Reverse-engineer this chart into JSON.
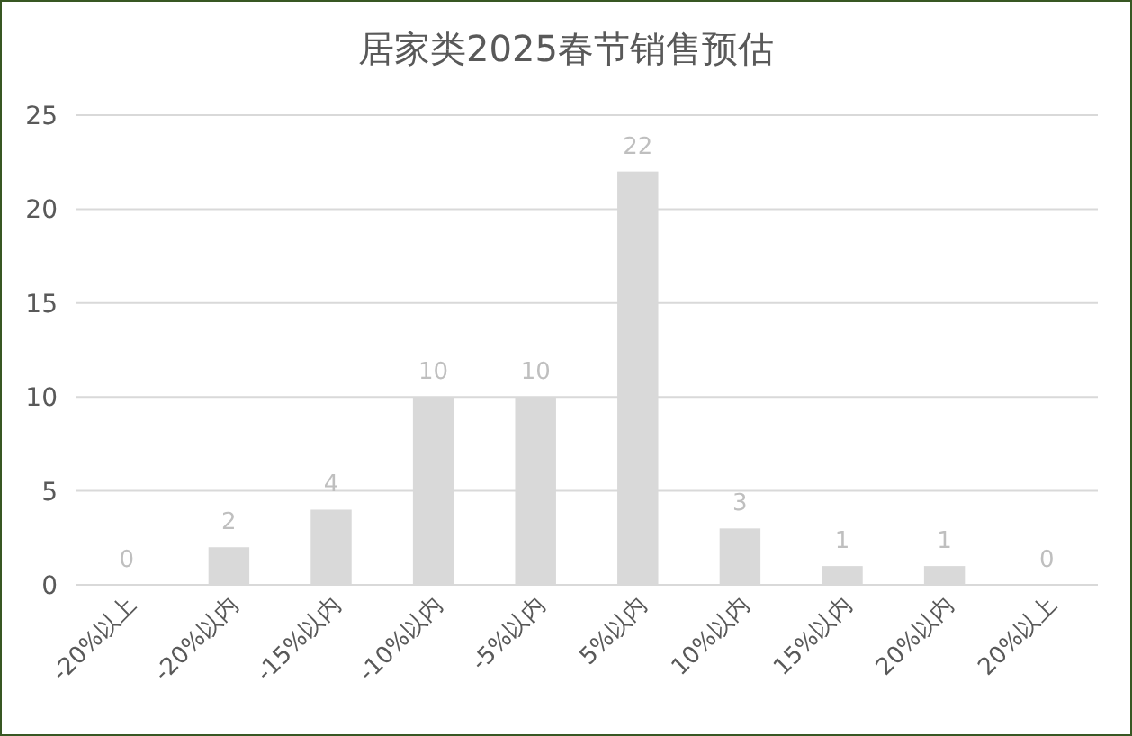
{
  "chart_data": {
    "type": "bar",
    "title": "居家类2025春节销售预估",
    "categories": [
      "-20%以上",
      "-20%以内",
      "-15%以内",
      "-10%以内",
      "-5%以内",
      "5%以内",
      "10%以内",
      "15%以内",
      "20%以内",
      "20%以上"
    ],
    "values": [
      0,
      2,
      4,
      10,
      10,
      22,
      3,
      1,
      1,
      0
    ],
    "color": "#d9d9d9",
    "ylim": [
      0,
      25
    ],
    "yticks": [
      0,
      5,
      10,
      15,
      20,
      25
    ],
    "grid": "y",
    "data_labels": true
  }
}
